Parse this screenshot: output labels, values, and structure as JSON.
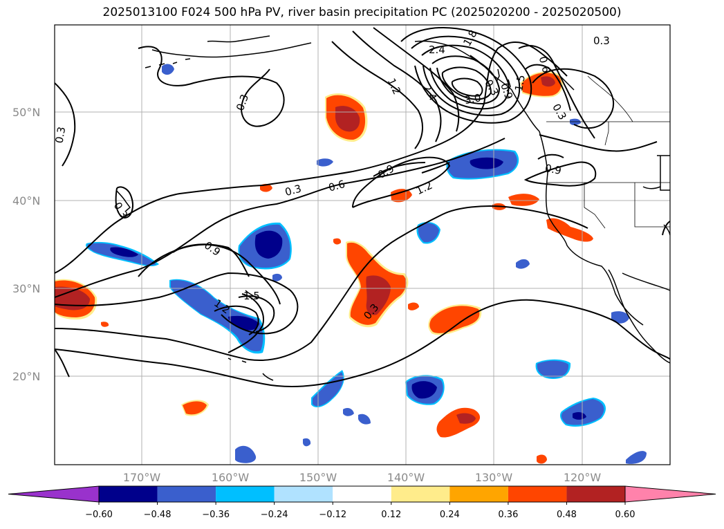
{
  "title": "2025013100 F024 500 hPa PV, river basin precipitation PC (2025020200 - 2025020500)",
  "lat_labels": [
    "50°N",
    "40°N",
    "30°N",
    "20°N"
  ],
  "lon_labels": [
    "170°W",
    "160°W",
    "150°W",
    "140°W",
    "130°W",
    "120°W"
  ],
  "contour_labels": [
    "0.3",
    "0.3",
    "0.3",
    "0.3",
    "0.3",
    "0.6",
    "0.9",
    "0.9",
    "1.2",
    "1.2",
    "1.8",
    "2.4",
    "2.4",
    "3.0",
    "1.5",
    "0.6",
    "0.3",
    "0.9",
    "0.3",
    "0.9",
    "1.5",
    "1.2",
    "0.3"
  ],
  "colorbar": {
    "ticks": [
      "−0.60",
      "−0.48",
      "−0.36",
      "−0.24",
      "−0.12",
      "0.12",
      "0.24",
      "0.36",
      "0.48",
      "0.60"
    ],
    "colors": [
      "#9932cc",
      "#00008b",
      "#3a5fcd",
      "#00bfff",
      "#b0e2ff",
      "#ffffff",
      "#ffec8b",
      "#ffa500",
      "#ff4500",
      "#b22222",
      "#ff82ab"
    ]
  },
  "colors": {
    "frame": "#000000",
    "grid": "#b0b0b0",
    "coast": "#000000",
    "contour": "#000000"
  }
}
